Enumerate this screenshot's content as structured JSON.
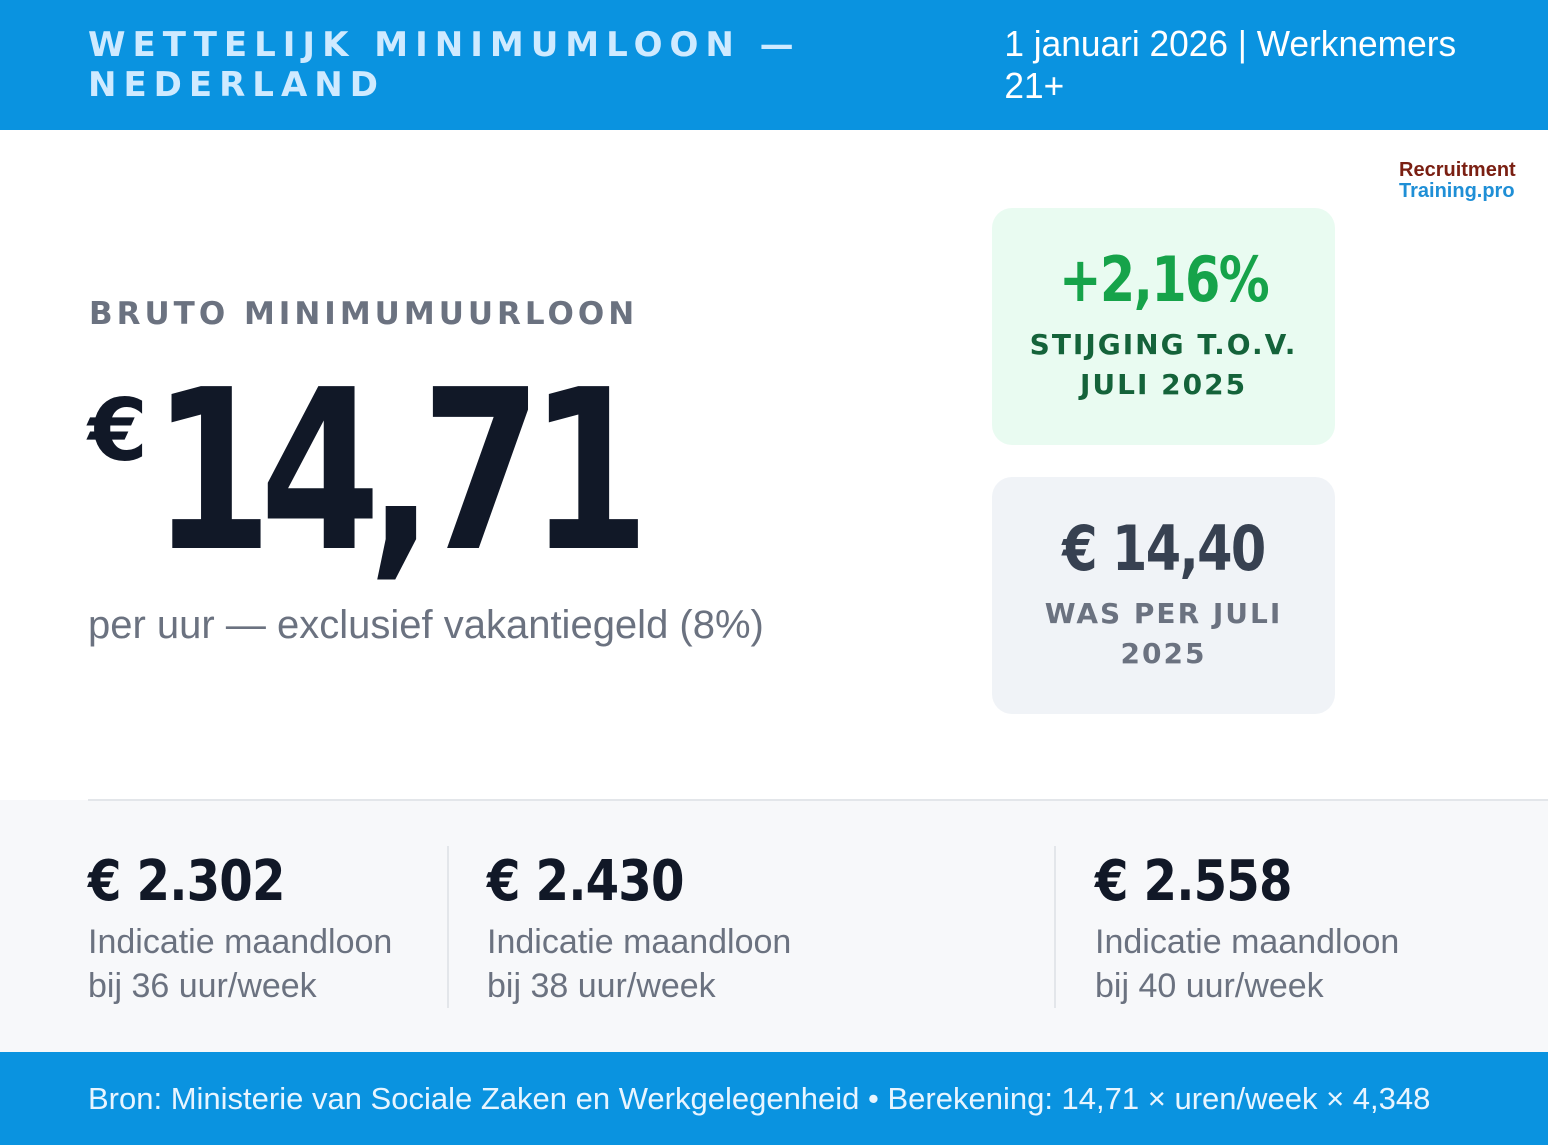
{
  "header": {
    "title": "WETTELIJK MINIMUMLOON — NEDERLAND",
    "subtitle": "1 januari 2026 | Werknemers 21+"
  },
  "logo": {
    "line1": "Recruitment",
    "line2": "Training.pro"
  },
  "main": {
    "eyebrow": "BRUTO MINIMUMUURLOON",
    "currency": "€",
    "hourly_wage": "14,71",
    "note": "per uur — exclusief vakantiegeld (8%)"
  },
  "cards": [
    {
      "value": "+2,16%",
      "label": "STIJGING T.O.V. JULI 2025",
      "color": "#16a34a"
    },
    {
      "value": "€ 14,40",
      "label": "WAS PER JULI 2025",
      "color": "#374151"
    }
  ],
  "stats": [
    {
      "value": "€ 2.302",
      "line1": "Indicatie maandloon",
      "line2": "bij 36 uur/week"
    },
    {
      "value": "€ 2.430",
      "line1": "Indicatie maandloon",
      "line2": "bij 38 uur/week"
    },
    {
      "value": "€ 2.558",
      "line1": "Indicatie maandloon",
      "line2": "bij 40 uur/week"
    }
  ],
  "footer": {
    "source": "Bron: Ministerie van Sociale Zaken en Werkgelegenheid • Berekening: 14,71 × uren/week × 4,348"
  },
  "colors": {
    "brand_blue": "#0a93e0",
    "increase_green": "#16a34a",
    "text_dark": "#111827",
    "text_muted": "#6b7280"
  }
}
